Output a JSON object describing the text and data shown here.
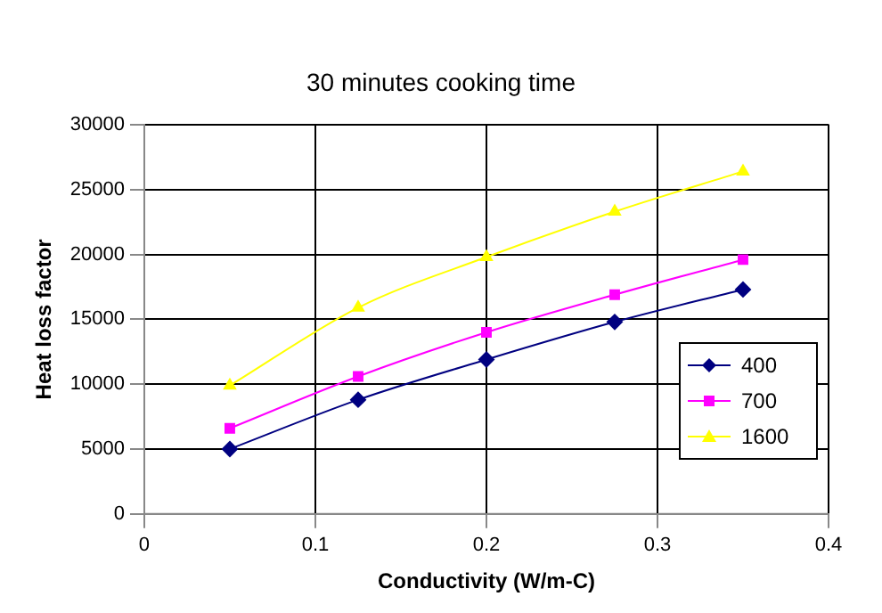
{
  "chart_data": {
    "type": "line",
    "title": "30 minutes cooking time",
    "xlabel": "Conductivity (W/m-C)",
    "ylabel": "Heat loss factor",
    "x": [
      0.05,
      0.125,
      0.2,
      0.275,
      0.35
    ],
    "series": [
      {
        "name": "400",
        "color": "#000080",
        "marker": "diamond",
        "values": [
          5000,
          8800,
          11900,
          14800,
          17300
        ]
      },
      {
        "name": "700",
        "color": "#ff00ff",
        "marker": "square",
        "values": [
          6600,
          10600,
          14000,
          16900,
          19600
        ]
      },
      {
        "name": "1600",
        "color": "#ffff00",
        "marker": "triangle",
        "values": [
          9900,
          15900,
          19800,
          23300,
          26400
        ]
      }
    ],
    "xlim": [
      0,
      0.4
    ],
    "xticks": [
      0,
      0.1,
      0.2,
      0.3,
      0.4
    ],
    "ylim": [
      0,
      30000
    ],
    "yticks": [
      0,
      5000,
      10000,
      15000,
      20000,
      25000,
      30000
    ],
    "grid": true,
    "legend": "right"
  }
}
